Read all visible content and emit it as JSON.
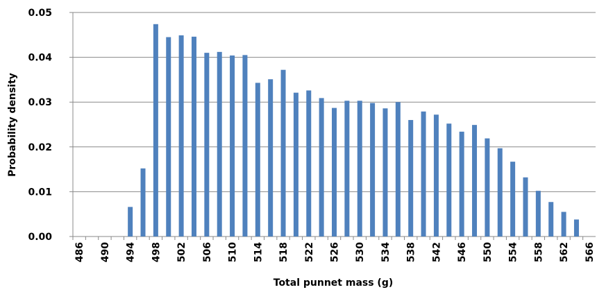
{
  "chart_data": {
    "type": "bar",
    "x_label": "Total punnet mass (g)",
    "y_label": "Probability density",
    "categories": [
      486,
      null,
      490,
      null,
      494,
      null,
      498,
      null,
      502,
      null,
      506,
      null,
      510,
      null,
      514,
      null,
      518,
      null,
      522,
      null,
      526,
      null,
      530,
      null,
      534,
      null,
      538,
      null,
      542,
      null,
      546,
      null,
      550,
      null,
      554,
      null,
      558,
      null,
      562,
      null,
      566
    ],
    "values": [
      0,
      0,
      0,
      0,
      0.0066,
      0.0152,
      0.0474,
      0.0445,
      0.0449,
      0.0446,
      0.041,
      0.0412,
      0.0404,
      0.0405,
      0.0343,
      0.0351,
      0.0372,
      0.0321,
      0.0326,
      0.0309,
      0.0287,
      0.0303,
      0.0303,
      0.0298,
      0.0286,
      0.03,
      0.026,
      0.0279,
      0.0272,
      0.0252,
      0.0234,
      0.0249,
      0.0219,
      0.0197,
      0.0167,
      0.0132,
      0.0102,
      0.0077,
      0.0055,
      0.0038,
      null
    ],
    "color": "#4f81bd",
    "ylim": [
      0,
      0.05
    ],
    "yticks": [
      {
        "value": 0,
        "label": "0.00"
      },
      0.01,
      0.02,
      0.03,
      0.04,
      0.05
    ],
    "grid": true
  }
}
